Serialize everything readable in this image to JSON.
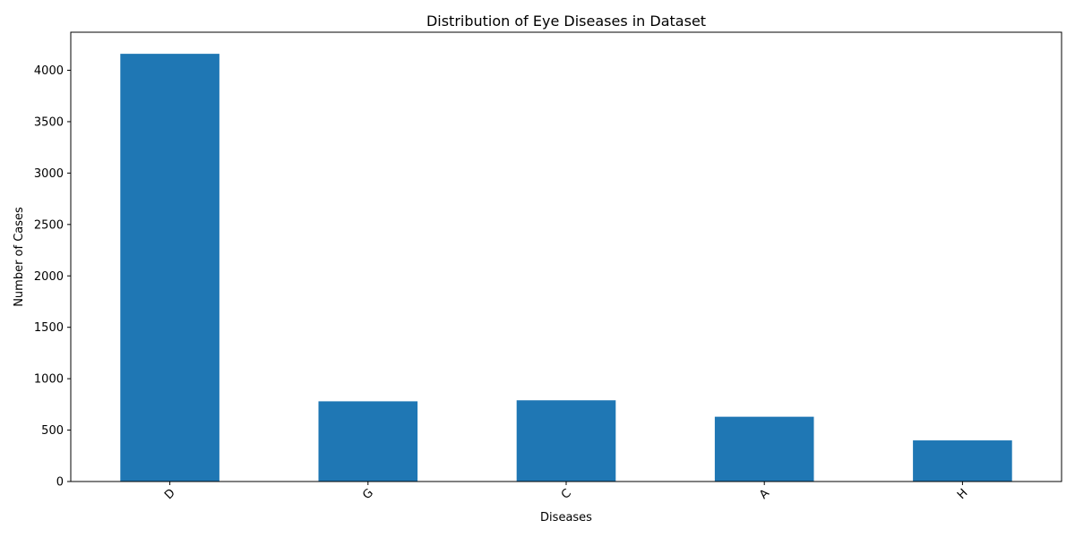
{
  "chart_data": {
    "type": "bar",
    "title": "Distribution of Eye Diseases in Dataset",
    "xlabel": "Diseases",
    "ylabel": "Number of Cases",
    "categories": [
      "D",
      "G",
      "C",
      "A",
      "H"
    ],
    "values": [
      4160,
      780,
      790,
      630,
      400
    ],
    "ylim": [
      0,
      4370
    ],
    "yticks": [
      0,
      500,
      1000,
      1500,
      2000,
      2500,
      3000,
      3500,
      4000
    ],
    "xtick_rotation": -45,
    "bar_color": "#1f77b4",
    "grid": false,
    "legend": "none"
  }
}
